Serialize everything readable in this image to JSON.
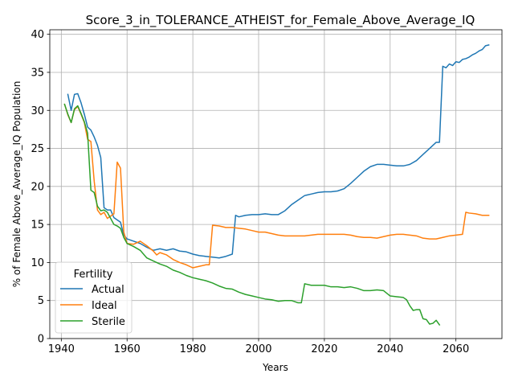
{
  "chart_data": {
    "type": "line",
    "title": "Score_3_in_TOLERANCE_ATHEIST_for_Female_Above_Average_IQ",
    "xlabel": "Years",
    "ylabel": "% of Female Above_Average_IQ Population",
    "xlim": [
      1936.5,
      2074
    ],
    "ylim": [
      0,
      40.6
    ],
    "xticks": [
      1940,
      1960,
      1980,
      2000,
      2020,
      2040,
      2060
    ],
    "yticks": [
      0,
      5,
      10,
      15,
      20,
      25,
      30,
      35,
      40
    ],
    "grid": true,
    "legend": {
      "title": "Fertility",
      "placement": "lower-left"
    },
    "series": [
      {
        "name": "Actual",
        "color": "#1f77b4",
        "points": [
          [
            1942,
            32.1
          ],
          [
            1943,
            30.0
          ],
          [
            1944,
            32.1
          ],
          [
            1945,
            32.2
          ],
          [
            1946,
            31.0
          ],
          [
            1947,
            29.5
          ],
          [
            1948,
            27.8
          ],
          [
            1949,
            27.4
          ],
          [
            1950,
            26.5
          ],
          [
            1951,
            25.4
          ],
          [
            1952,
            23.8
          ],
          [
            1953,
            17.2
          ],
          [
            1954,
            16.9
          ],
          [
            1955,
            16.9
          ],
          [
            1956,
            15.9
          ],
          [
            1957,
            15.6
          ],
          [
            1958,
            15.3
          ],
          [
            1959,
            13.6
          ],
          [
            1960,
            13.1
          ],
          [
            1962,
            12.8
          ],
          [
            1964,
            12.5
          ],
          [
            1966,
            12.0
          ],
          [
            1968,
            11.6
          ],
          [
            1970,
            11.8
          ],
          [
            1972,
            11.6
          ],
          [
            1974,
            11.8
          ],
          [
            1976,
            11.5
          ],
          [
            1978,
            11.4
          ],
          [
            1980,
            11.1
          ],
          [
            1982,
            10.9
          ],
          [
            1984,
            10.8
          ],
          [
            1986,
            10.7
          ],
          [
            1988,
            10.6
          ],
          [
            1990,
            10.8
          ],
          [
            1992,
            11.1
          ],
          [
            1993,
            16.2
          ],
          [
            1994,
            16.0
          ],
          [
            1996,
            16.2
          ],
          [
            1998,
            16.3
          ],
          [
            2000,
            16.3
          ],
          [
            2002,
            16.4
          ],
          [
            2004,
            16.3
          ],
          [
            2006,
            16.3
          ],
          [
            2008,
            16.8
          ],
          [
            2010,
            17.6
          ],
          [
            2012,
            18.2
          ],
          [
            2014,
            18.8
          ],
          [
            2016,
            19.0
          ],
          [
            2018,
            19.2
          ],
          [
            2020,
            19.3
          ],
          [
            2022,
            19.3
          ],
          [
            2024,
            19.4
          ],
          [
            2026,
            19.7
          ],
          [
            2028,
            20.4
          ],
          [
            2030,
            21.2
          ],
          [
            2032,
            22.0
          ],
          [
            2034,
            22.6
          ],
          [
            2036,
            22.9
          ],
          [
            2038,
            22.9
          ],
          [
            2040,
            22.8
          ],
          [
            2042,
            22.7
          ],
          [
            2044,
            22.7
          ],
          [
            2046,
            22.9
          ],
          [
            2048,
            23.4
          ],
          [
            2050,
            24.2
          ],
          [
            2052,
            25.0
          ],
          [
            2054,
            25.8
          ],
          [
            2055,
            25.8
          ],
          [
            2056,
            35.8
          ],
          [
            2057,
            35.6
          ],
          [
            2058,
            36.1
          ],
          [
            2059,
            35.9
          ],
          [
            2060,
            36.4
          ],
          [
            2061,
            36.3
          ],
          [
            2062,
            36.7
          ],
          [
            2063,
            36.8
          ],
          [
            2064,
            37.0
          ],
          [
            2065,
            37.3
          ],
          [
            2066,
            37.5
          ],
          [
            2067,
            37.8
          ],
          [
            2068,
            38.0
          ],
          [
            2069,
            38.5
          ],
          [
            2070,
            38.6
          ]
        ]
      },
      {
        "name": "Ideal",
        "color": "#ff7f0e",
        "points": [
          [
            1941,
            30.8
          ],
          [
            1942,
            29.4
          ],
          [
            1943,
            28.4
          ],
          [
            1944,
            30.1
          ],
          [
            1945,
            30.5
          ],
          [
            1946,
            29.5
          ],
          [
            1947,
            28.4
          ],
          [
            1948,
            26.2
          ],
          [
            1949,
            25.9
          ],
          [
            1950,
            20.7
          ],
          [
            1951,
            16.9
          ],
          [
            1952,
            16.3
          ],
          [
            1953,
            16.6
          ],
          [
            1954,
            15.8
          ],
          [
            1955,
            16.1
          ],
          [
            1956,
            16.4
          ],
          [
            1957,
            23.2
          ],
          [
            1958,
            22.4
          ],
          [
            1959,
            14.0
          ],
          [
            1960,
            12.5
          ],
          [
            1962,
            12.4
          ],
          [
            1964,
            12.8
          ],
          [
            1966,
            12.2
          ],
          [
            1968,
            11.5
          ],
          [
            1969,
            11.0
          ],
          [
            1970,
            11.3
          ],
          [
            1972,
            11.0
          ],
          [
            1974,
            10.4
          ],
          [
            1976,
            10.0
          ],
          [
            1978,
            9.7
          ],
          [
            1980,
            9.3
          ],
          [
            1982,
            9.5
          ],
          [
            1984,
            9.7
          ],
          [
            1985,
            9.7
          ],
          [
            1986,
            14.9
          ],
          [
            1988,
            14.8
          ],
          [
            1990,
            14.6
          ],
          [
            1992,
            14.6
          ],
          [
            1994,
            14.5
          ],
          [
            1996,
            14.4
          ],
          [
            1998,
            14.2
          ],
          [
            2000,
            14.0
          ],
          [
            2002,
            14.0
          ],
          [
            2004,
            13.8
          ],
          [
            2006,
            13.6
          ],
          [
            2008,
            13.5
          ],
          [
            2010,
            13.5
          ],
          [
            2012,
            13.5
          ],
          [
            2014,
            13.5
          ],
          [
            2016,
            13.6
          ],
          [
            2018,
            13.7
          ],
          [
            2020,
            13.7
          ],
          [
            2022,
            13.7
          ],
          [
            2024,
            13.7
          ],
          [
            2026,
            13.7
          ],
          [
            2028,
            13.6
          ],
          [
            2030,
            13.4
          ],
          [
            2032,
            13.3
          ],
          [
            2034,
            13.3
          ],
          [
            2036,
            13.2
          ],
          [
            2038,
            13.4
          ],
          [
            2040,
            13.6
          ],
          [
            2042,
            13.7
          ],
          [
            2044,
            13.7
          ],
          [
            2046,
            13.6
          ],
          [
            2048,
            13.5
          ],
          [
            2050,
            13.2
          ],
          [
            2052,
            13.1
          ],
          [
            2054,
            13.1
          ],
          [
            2056,
            13.3
          ],
          [
            2058,
            13.5
          ],
          [
            2060,
            13.6
          ],
          [
            2062,
            13.7
          ],
          [
            2063,
            16.6
          ],
          [
            2064,
            16.5
          ],
          [
            2066,
            16.4
          ],
          [
            2068,
            16.2
          ],
          [
            2070,
            16.2
          ]
        ]
      },
      {
        "name": "Sterile",
        "color": "#2ca02c",
        "points": [
          [
            1941,
            30.8
          ],
          [
            1942,
            29.5
          ],
          [
            1943,
            28.4
          ],
          [
            1944,
            30.2
          ],
          [
            1945,
            30.6
          ],
          [
            1946,
            29.6
          ],
          [
            1947,
            28.5
          ],
          [
            1948,
            27.0
          ],
          [
            1949,
            19.5
          ],
          [
            1950,
            19.2
          ],
          [
            1951,
            17.4
          ],
          [
            1952,
            16.8
          ],
          [
            1953,
            16.9
          ],
          [
            1954,
            16.6
          ],
          [
            1955,
            15.8
          ],
          [
            1956,
            15.0
          ],
          [
            1957,
            14.8
          ],
          [
            1958,
            14.5
          ],
          [
            1959,
            13.3
          ],
          [
            1960,
            12.5
          ],
          [
            1962,
            12.1
          ],
          [
            1964,
            11.6
          ],
          [
            1966,
            10.6
          ],
          [
            1968,
            10.2
          ],
          [
            1970,
            9.8
          ],
          [
            1972,
            9.5
          ],
          [
            1974,
            9.0
          ],
          [
            1976,
            8.7
          ],
          [
            1978,
            8.3
          ],
          [
            1980,
            8.0
          ],
          [
            1982,
            7.8
          ],
          [
            1984,
            7.6
          ],
          [
            1986,
            7.3
          ],
          [
            1988,
            6.9
          ],
          [
            1990,
            6.6
          ],
          [
            1992,
            6.5
          ],
          [
            1994,
            6.1
          ],
          [
            1996,
            5.8
          ],
          [
            1998,
            5.6
          ],
          [
            2000,
            5.4
          ],
          [
            2002,
            5.2
          ],
          [
            2004,
            5.1
          ],
          [
            2006,
            4.9
          ],
          [
            2008,
            5.0
          ],
          [
            2010,
            5.0
          ],
          [
            2012,
            4.7
          ],
          [
            2013,
            4.7
          ],
          [
            2014,
            7.2
          ],
          [
            2016,
            7.0
          ],
          [
            2018,
            7.0
          ],
          [
            2020,
            7.0
          ],
          [
            2022,
            6.8
          ],
          [
            2024,
            6.8
          ],
          [
            2026,
            6.7
          ],
          [
            2028,
            6.8
          ],
          [
            2030,
            6.6
          ],
          [
            2032,
            6.3
          ],
          [
            2034,
            6.3
          ],
          [
            2036,
            6.4
          ],
          [
            2038,
            6.3
          ],
          [
            2040,
            5.6
          ],
          [
            2042,
            5.5
          ],
          [
            2044,
            5.4
          ],
          [
            2045,
            5.1
          ],
          [
            2046,
            4.3
          ],
          [
            2047,
            3.7
          ],
          [
            2048,
            3.8
          ],
          [
            2049,
            3.8
          ],
          [
            2050,
            2.6
          ],
          [
            2051,
            2.5
          ],
          [
            2052,
            1.9
          ],
          [
            2053,
            2.0
          ],
          [
            2054,
            2.4
          ],
          [
            2055,
            1.8
          ]
        ]
      }
    ]
  }
}
